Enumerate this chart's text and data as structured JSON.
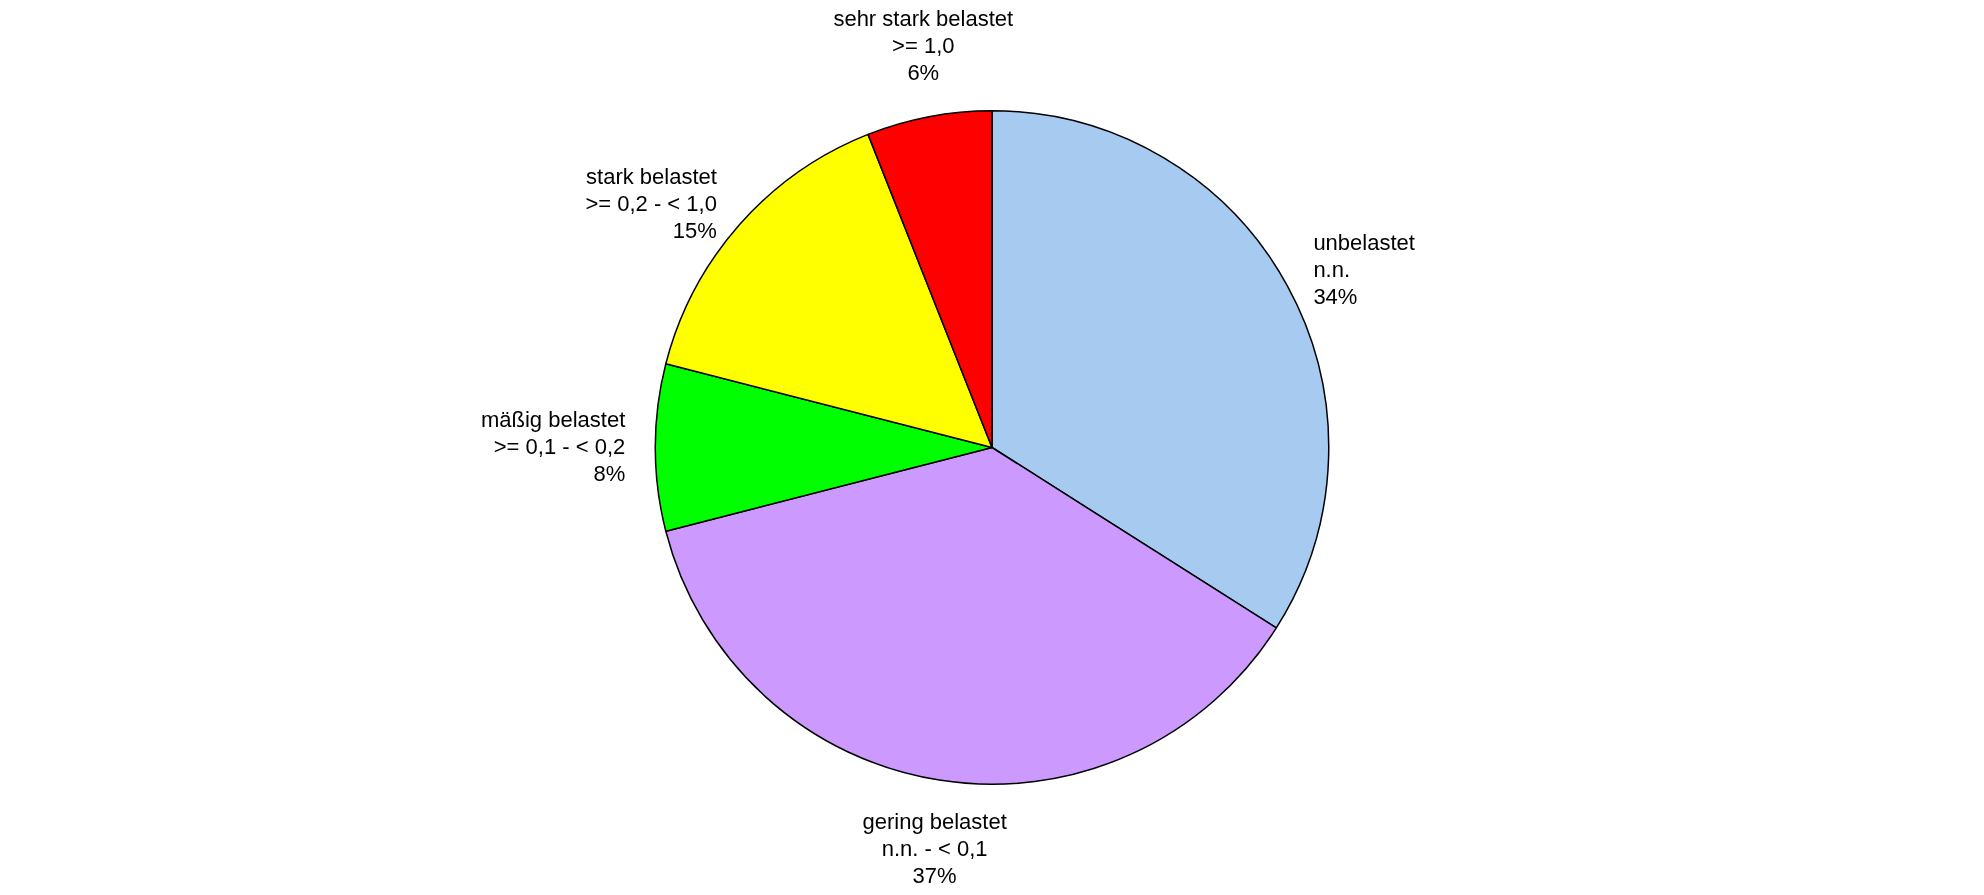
{
  "chart_data": {
    "type": "pie",
    "categories": [
      "unbelastet\nn.n.",
      "gering belastet\nn.n. - < 0,1",
      "mäßig belastet\n>= 0,1 - < 0,2",
      "stark belastet\n>= 0,2 - < 1,0",
      "sehr stark belastet\n>= 1,0"
    ],
    "values": [
      34,
      37,
      8,
      15,
      6
    ],
    "colors": [
      "#a6caf0",
      "#cc99ff",
      "#00ff00",
      "#ffff00",
      "#ff0000"
    ],
    "value_labels": [
      "34%",
      "37%",
      "8%",
      "15%",
      "6%"
    ],
    "legend": false
  }
}
